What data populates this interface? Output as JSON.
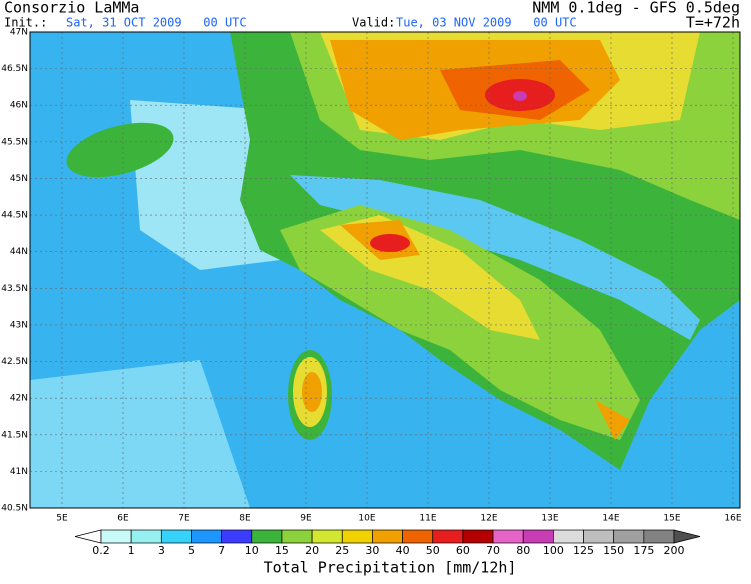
{
  "header": {
    "title": "Consorzio LaMMa",
    "init_label": "Init.:",
    "init": "Sat, 31 OCT 2009   00 UTC",
    "model": "NMM 0.1deg - GFS 0.5deg",
    "valid_label": "Valid:",
    "valid": "Tue, 03 NOV 2009   00 UTC",
    "lead": "T=+72h"
  },
  "map": {
    "lat_labels": [
      "47N",
      "46.5N",
      "46N",
      "45.5N",
      "45N",
      "44.5N",
      "44N",
      "43.5N",
      "43N",
      "42.5N",
      "42N",
      "41.5N",
      "41N",
      "40.5N"
    ],
    "lon_labels": [
      "5E",
      "6E",
      "7E",
      "8E",
      "9E",
      "10E",
      "11E",
      "12E",
      "13E",
      "14E",
      "15E",
      "16E"
    ]
  },
  "colorbar": {
    "title": "Total Precipitation [mm/12h]",
    "levels": [
      "0.2",
      "1",
      "3",
      "5",
      "7",
      "10",
      "15",
      "20",
      "25",
      "30",
      "40",
      "50",
      "60",
      "70",
      "80",
      "100",
      "125",
      "150",
      "175",
      "200"
    ],
    "colors": [
      "#ffffff",
      "#c8fafa",
      "#96f0f0",
      "#37d2fa",
      "#1e96ff",
      "#3c3cff",
      "#3cb43c",
      "#8cd23c",
      "#d2e632",
      "#f0d200",
      "#f0a000",
      "#f06400",
      "#e61e1e",
      "#b40000",
      "#e664c8",
      "#c83cb4",
      "#dcdcdc",
      "#bebebe",
      "#a0a0a0",
      "#828282",
      "#505050"
    ]
  }
}
